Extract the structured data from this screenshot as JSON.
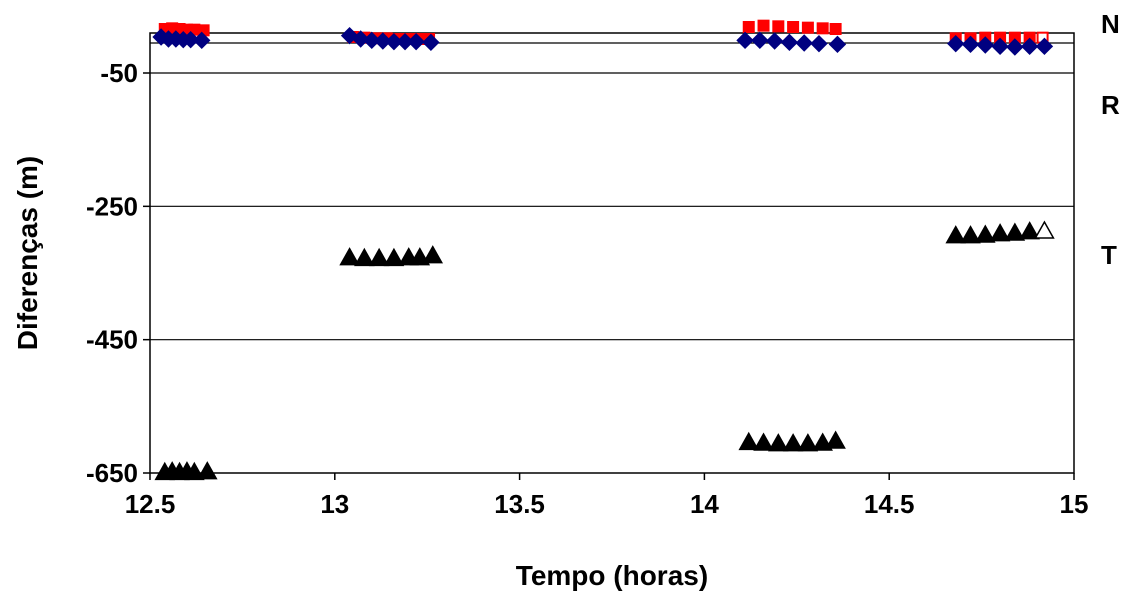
{
  "chart_data": {
    "type": "scatter",
    "xlabel": "Tempo (horas)",
    "ylabel": "Diferenças (m)",
    "xlim": [
      12.5,
      15
    ],
    "ylim": [
      -650,
      10
    ],
    "x_ticks": [
      "12.5",
      "13",
      "13.5",
      "14",
      "14.5",
      "15"
    ],
    "y_ticks": [
      "-50",
      "-250",
      "-450",
      "-650"
    ],
    "y_tick_values": [
      -50,
      -250,
      -450,
      -650
    ],
    "grid": "horizontal",
    "legend_placement": "right",
    "series": [
      {
        "name": "N",
        "color": "#ff0000",
        "marker": "square",
        "points": [
          [
            12.54,
            16
          ],
          [
            12.56,
            17
          ],
          [
            12.58,
            16
          ],
          [
            12.6,
            15
          ],
          [
            12.62,
            15
          ],
          [
            12.645,
            14
          ],
          [
            13.05,
            4
          ],
          [
            13.08,
            3
          ],
          [
            13.11,
            2
          ],
          [
            13.14,
            2
          ],
          [
            13.17,
            1
          ],
          [
            13.2,
            1
          ],
          [
            13.23,
            1
          ],
          [
            13.255,
            1
          ],
          [
            14.12,
            19
          ],
          [
            14.16,
            21
          ],
          [
            14.2,
            20
          ],
          [
            14.24,
            19
          ],
          [
            14.28,
            18
          ],
          [
            14.32,
            17
          ],
          [
            14.355,
            16
          ],
          [
            14.68,
            2
          ],
          [
            14.72,
            2
          ],
          [
            14.76,
            3
          ],
          [
            14.8,
            3
          ],
          [
            14.84,
            3
          ],
          [
            14.88,
            3
          ],
          [
            14.915,
            3
          ]
        ]
      },
      {
        "name": "R",
        "color": "#000080",
        "marker": "diamond",
        "points": [
          [
            12.53,
            4
          ],
          [
            12.55,
            1
          ],
          [
            12.57,
            1
          ],
          [
            12.59,
            0
          ],
          [
            12.61,
            0
          ],
          [
            12.64,
            -1
          ],
          [
            13.04,
            6
          ],
          [
            13.07,
            1
          ],
          [
            13.1,
            -1
          ],
          [
            13.13,
            -2
          ],
          [
            13.16,
            -3
          ],
          [
            13.19,
            -3
          ],
          [
            13.22,
            -3
          ],
          [
            13.26,
            -4
          ],
          [
            14.11,
            -1
          ],
          [
            14.15,
            -1
          ],
          [
            14.19,
            -2
          ],
          [
            14.23,
            -4
          ],
          [
            14.27,
            -5
          ],
          [
            14.31,
            -6
          ],
          [
            14.36,
            -7
          ],
          [
            14.68,
            -6
          ],
          [
            14.72,
            -7
          ],
          [
            14.76,
            -8
          ],
          [
            14.8,
            -10
          ],
          [
            14.84,
            -11
          ],
          [
            14.88,
            -10
          ],
          [
            14.92,
            -10
          ]
        ]
      },
      {
        "name": "T",
        "color": "#000000",
        "marker": "triangle",
        "points": [
          [
            12.54,
            -649
          ],
          [
            12.56,
            -648
          ],
          [
            12.58,
            -649
          ],
          [
            12.6,
            -648
          ],
          [
            12.62,
            -649
          ],
          [
            12.655,
            -648
          ],
          [
            13.04,
            -327
          ],
          [
            13.08,
            -328
          ],
          [
            13.12,
            -328
          ],
          [
            13.16,
            -328
          ],
          [
            13.2,
            -327
          ],
          [
            13.23,
            -327
          ],
          [
            13.265,
            -324
          ],
          [
            14.12,
            -604
          ],
          [
            14.16,
            -605
          ],
          [
            14.2,
            -606
          ],
          [
            14.24,
            -606
          ],
          [
            14.28,
            -606
          ],
          [
            14.32,
            -605
          ],
          [
            14.355,
            -602
          ],
          [
            14.68,
            -294
          ],
          [
            14.72,
            -294
          ],
          [
            14.76,
            -293
          ],
          [
            14.8,
            -291
          ],
          [
            14.84,
            -290
          ],
          [
            14.88,
            -288
          ],
          [
            14.92,
            -287
          ]
        ]
      }
    ]
  }
}
